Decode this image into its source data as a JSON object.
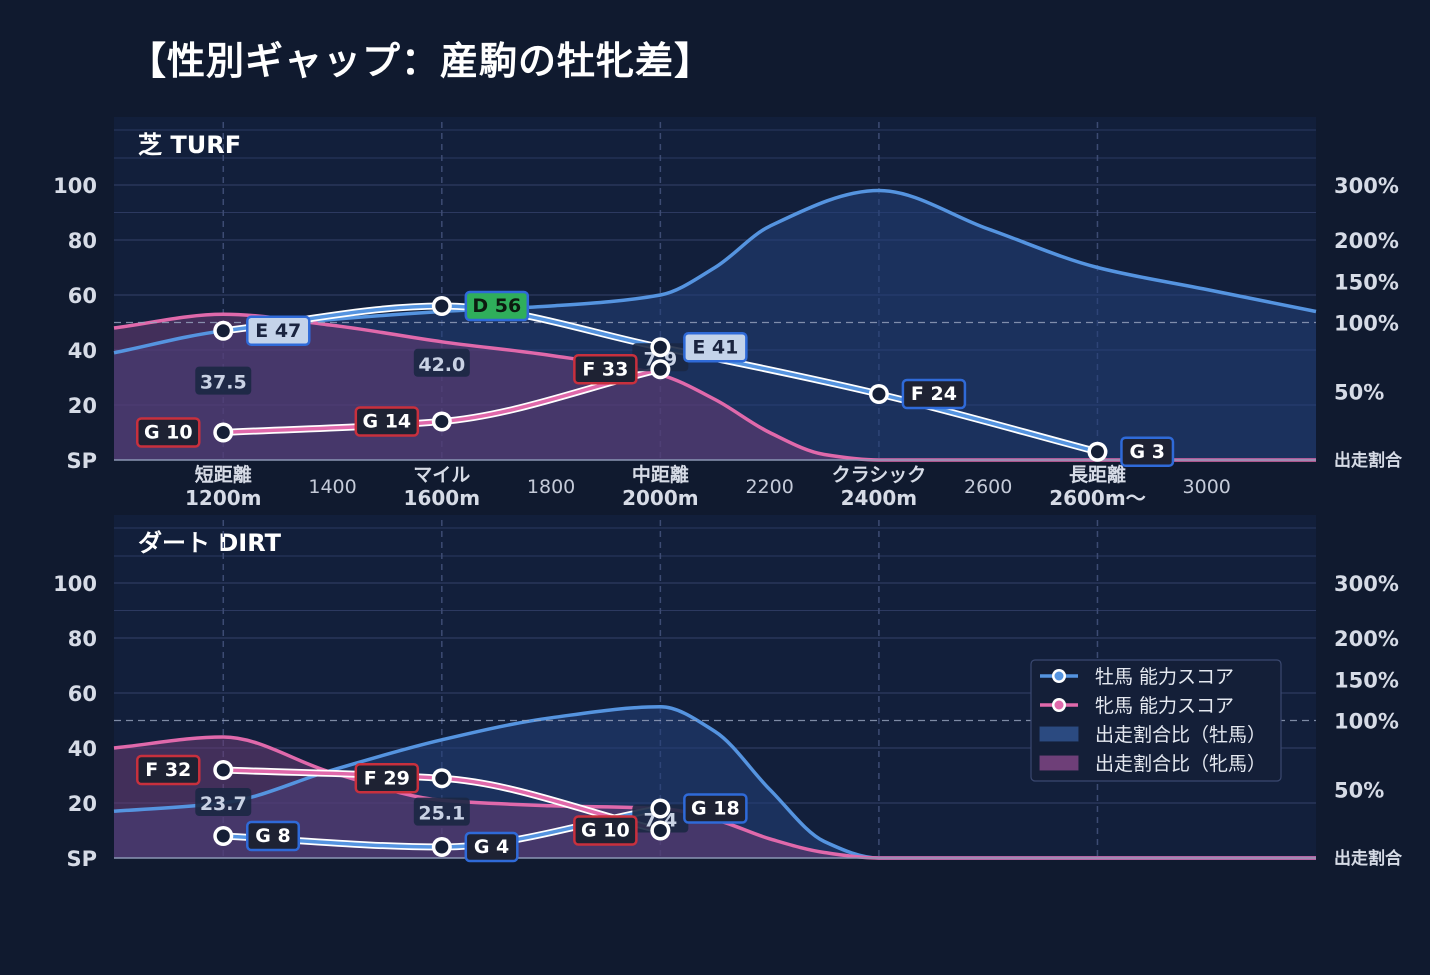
{
  "title": "【性別ギャップ：産駒の牡牝差】",
  "colors": {
    "background": "#101a2f",
    "panel": "#121f3b",
    "male": "#5594e0",
    "female": "#e069ab",
    "male_area": "#22396b",
    "female_area": "#3d3a64",
    "grade_D": "#2fae5b",
    "grade_E": "#c4d3ea",
    "grade_F_G_female_border": "#c8303d",
    "grade_F_G_male_border": "#2f6ad8",
    "text": "#d6dbe6"
  },
  "legend": {
    "items": [
      {
        "label": "牡馬 能力スコア",
        "kind": "line",
        "color": "#5594e0"
      },
      {
        "label": "牝馬 能力スコア",
        "kind": "line",
        "color": "#e069ab"
      },
      {
        "label": "出走割合比（牡馬）",
        "kind": "area",
        "color": "#2b4a80"
      },
      {
        "label": "出走割合比（牝馬）",
        "kind": "area",
        "color": "#6e3f78"
      }
    ]
  },
  "chart_data": [
    {
      "type": "line",
      "name": "芝 TURF",
      "x_domain": [
        1000,
        3200
      ],
      "left_axis": {
        "ticks": [
          0,
          20,
          40,
          60,
          80,
          100
        ],
        "tick_labels": [
          "SP",
          "20",
          "40",
          "60",
          "80",
          "100"
        ],
        "ylim": [
          0,
          110
        ]
      },
      "right_axis": {
        "tick_labels": [
          "出走割合",
          "50%",
          "100%",
          "150%",
          "200%",
          "300%"
        ],
        "label_positions_left_scale": [
          0,
          25,
          50,
          65,
          80,
          100
        ]
      },
      "x_ticks": [
        {
          "x": 1200,
          "label": "短距離",
          "label2": "1200m",
          "major": true
        },
        {
          "x": 1400,
          "label": "1400",
          "major": false
        },
        {
          "x": 1600,
          "label": "マイル",
          "label2": "1600m",
          "major": true
        },
        {
          "x": 1800,
          "label": "1800",
          "major": false
        },
        {
          "x": 2000,
          "label": "中距離",
          "label2": "2000m",
          "major": true
        },
        {
          "x": 2200,
          "label": "2200",
          "major": false
        },
        {
          "x": 2400,
          "label": "クラシック",
          "label2": "2400m",
          "major": true
        },
        {
          "x": 2600,
          "label": "2600",
          "major": false
        },
        {
          "x": 2800,
          "label": "長距離",
          "label2": "2600m〜",
          "major": true
        },
        {
          "x": 3000,
          "label": "3000",
          "major": false
        }
      ],
      "reference_line": 50,
      "male": {
        "points": [
          {
            "x": 1200,
            "score": 47,
            "grade": "E 47"
          },
          {
            "x": 1600,
            "score": 56,
            "grade": "D 56"
          },
          {
            "x": 2000,
            "score": 41,
            "grade": "E 41"
          },
          {
            "x": 2400,
            "score": 24,
            "grade": "F 24"
          },
          {
            "x": 2800,
            "score": 3,
            "grade": "G 3"
          }
        ]
      },
      "female": {
        "points": [
          {
            "x": 1200,
            "score": 10,
            "grade": "G 10"
          },
          {
            "x": 1600,
            "score": 14,
            "grade": "G 14"
          },
          {
            "x": 2000,
            "score": 33,
            "grade": "F 33"
          }
        ]
      },
      "gaps": [
        {
          "x": 1200,
          "value": "37.5"
        },
        {
          "x": 1600,
          "value": "42.0"
        },
        {
          "x": 2000,
          "value": "7.9"
        }
      ],
      "male_area": [
        [
          1000,
          39
        ],
        [
          1200,
          47
        ],
        [
          1600,
          54
        ],
        [
          1800,
          56
        ],
        [
          2000,
          60
        ],
        [
          2100,
          70
        ],
        [
          2200,
          85
        ],
        [
          2400,
          98
        ],
        [
          2600,
          84
        ],
        [
          2800,
          70
        ],
        [
          3000,
          62
        ],
        [
          3200,
          54
        ]
      ],
      "female_area": [
        [
          1000,
          48
        ],
        [
          1200,
          53
        ],
        [
          1400,
          49
        ],
        [
          1600,
          43
        ],
        [
          1800,
          38
        ],
        [
          2000,
          31
        ],
        [
          2100,
          22
        ],
        [
          2200,
          10
        ],
        [
          2300,
          2
        ],
        [
          2400,
          0
        ],
        [
          3200,
          0
        ]
      ]
    },
    {
      "type": "line",
      "name": "ダート DIRT",
      "x_domain": [
        1000,
        3200
      ],
      "left_axis": {
        "ticks": [
          0,
          20,
          40,
          60,
          80,
          100
        ],
        "tick_labels": [
          "SP",
          "20",
          "40",
          "60",
          "80",
          "100"
        ],
        "ylim": [
          0,
          110
        ]
      },
      "right_axis": {
        "tick_labels": [
          "出走割合",
          "50%",
          "100%",
          "150%",
          "200%",
          "300%"
        ],
        "label_positions_left_scale": [
          0,
          25,
          50,
          65,
          80,
          100
        ]
      },
      "reference_line": 50,
      "male": {
        "points": [
          {
            "x": 1200,
            "score": 8,
            "grade": "G 8"
          },
          {
            "x": 1600,
            "score": 4,
            "grade": "G 4"
          },
          {
            "x": 2000,
            "score": 18,
            "grade": "G 18"
          }
        ]
      },
      "female": {
        "points": [
          {
            "x": 1200,
            "score": 32,
            "grade": "F 32"
          },
          {
            "x": 1600,
            "score": 29,
            "grade": "F 29"
          },
          {
            "x": 2000,
            "score": 10,
            "grade": "G 10"
          }
        ]
      },
      "gaps": [
        {
          "x": 1200,
          "value": "23.7"
        },
        {
          "x": 1600,
          "value": "25.1"
        },
        {
          "x": 2000,
          "value": "7.4"
        }
      ],
      "male_area": [
        [
          1000,
          17
        ],
        [
          1200,
          20
        ],
        [
          1400,
          32
        ],
        [
          1600,
          43
        ],
        [
          1800,
          51
        ],
        [
          2000,
          55
        ],
        [
          2100,
          46
        ],
        [
          2200,
          25
        ],
        [
          2300,
          6
        ],
        [
          2400,
          0
        ],
        [
          3200,
          0
        ]
      ],
      "female_area": [
        [
          1000,
          40
        ],
        [
          1200,
          44
        ],
        [
          1400,
          31
        ],
        [
          1600,
          21
        ],
        [
          1800,
          19
        ],
        [
          2000,
          18
        ],
        [
          2100,
          14
        ],
        [
          2200,
          7
        ],
        [
          2300,
          2
        ],
        [
          2400,
          0
        ],
        [
          3200,
          0
        ]
      ]
    }
  ]
}
